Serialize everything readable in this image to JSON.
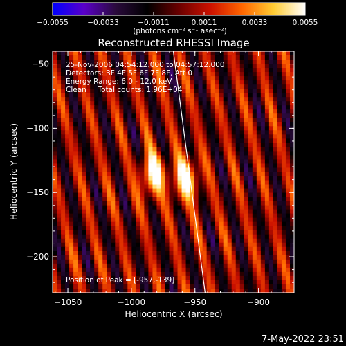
{
  "chart_data": {
    "type": "heatmap",
    "title": "Reconstructed RHESSI Image",
    "xlabel": "Heliocentric X (arcsec)",
    "ylabel": "Heliocentric Y (arcsec)",
    "xlim": [
      -1062,
      -872
    ],
    "ylim": [
      -228,
      -40
    ],
    "xticks": [
      -1050,
      -1000,
      -950,
      -900
    ],
    "xtick_labels": [
      "−1050",
      "−1000",
      "−950",
      "−900"
    ],
    "yticks": [
      -50,
      -100,
      -150,
      -200
    ],
    "ytick_labels": [
      "−50",
      "−100",
      "−150",
      "−200"
    ],
    "colorbar": {
      "label": "(photons cm⁻² s⁻¹ asec⁻²)",
      "range": [
        -0.0055,
        0.0055
      ],
      "ticks": [
        -0.0055,
        -0.0033,
        -0.0011,
        0.0011,
        0.0033,
        0.0055
      ],
      "tick_labels": [
        "−0.0055",
        "−0.0033",
        "−0.0011",
        "0.0011",
        "0.0033",
        "0.0055"
      ],
      "colors": [
        "#0000ff",
        "#5a00c8",
        "#2a0a3c",
        "#000000",
        "#6a0000",
        "#cc1100",
        "#ff6600",
        "#ffcc33",
        "#ffffff"
      ]
    },
    "annotations": {
      "time": "25-Nov-2006 04:54:12.000 to 04:57:12.000",
      "detectors": "Detectors: 3F 4F 5F 6F 7F 8F, Att 0",
      "energy": "Energy Range: 6.0 - 12.0 keV",
      "clean": "Clean     Total counts: 1.96E+04",
      "peak": "Position of Peak = [-957,-139]"
    },
    "peak": [
      -957,
      -139
    ],
    "limb_line": [
      [
        -967,
        -40
      ],
      [
        -942,
        -228
      ]
    ],
    "sources": [
      {
        "x": -983,
        "y": -136,
        "amplitude": 0.0055
      },
      {
        "x": -957,
        "y": -139,
        "amplitude": 0.0055
      }
    ],
    "fringe": {
      "period_arcsec": 20.5,
      "tilt_deg": 14
    },
    "background_noise_level": 0.0033,
    "timestamp": "7-May-2022 23:51"
  }
}
